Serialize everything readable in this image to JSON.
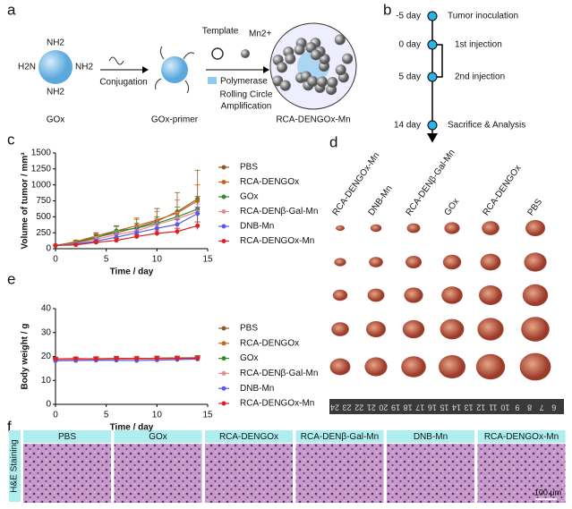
{
  "panel_a": {
    "letter": "a",
    "amine_top": "NH2",
    "amine_left": "H2N",
    "amine_right": "NH2",
    "amine_bottom": "NH2",
    "gox": "GOx",
    "step1": "Conjugation",
    "primer": "GOx-primer",
    "template": "Template",
    "ion": "Mn2+",
    "polymerase": "Polymerase",
    "rca_line1": "Rolling Circle",
    "rca_line2": "Amplification",
    "product": "RCA-DENGOx-Mn"
  },
  "panel_b": {
    "letter": "b",
    "events": [
      {
        "day": "-5 day",
        "label": "Tumor inoculation"
      },
      {
        "day": "0 day",
        "label": "1st injection"
      },
      {
        "day": "5 day",
        "label": "2nd injection"
      },
      {
        "day": "14 day",
        "label": "Sacrifice & Analysis"
      }
    ]
  },
  "panel_d": {
    "letter": "d",
    "groups": [
      "RCA-DENGOx-Mn",
      "DNB-Mn",
      "RCA-DENβ-Gal-Mn",
      "GOx",
      "RCA-DENGOx",
      "PBS"
    ],
    "ruler_labels": [
      "24",
      "23",
      "22",
      "21",
      "20",
      "19",
      "18",
      "17",
      "16",
      "15",
      "14",
      "13",
      "12",
      "11",
      "10",
      "9",
      "8",
      "7",
      "6"
    ]
  },
  "panel_f": {
    "letter": "f",
    "side_label": "H&E Staining",
    "groups": [
      "PBS",
      "GOx",
      "RCA-DENGOx",
      "RCA-DENβ-Gal-Mn",
      "DNB-Mn",
      "RCA-DENGOx-Mn"
    ],
    "scale": "100 μm"
  },
  "chart_data": [
    {
      "type": "line",
      "panel": "c",
      "x_label": "Time / day",
      "y_label": "Volume of tumor / mm³",
      "x": [
        0,
        2,
        4,
        6,
        8,
        10,
        12,
        14
      ],
      "xlim": [
        0,
        15
      ],
      "xticks": [
        0,
        5,
        10,
        15
      ],
      "ylim": [
        0,
        1500
      ],
      "yticks": [
        0,
        250,
        500,
        750,
        1000,
        1250,
        1500
      ],
      "series": [
        {
          "name": "PBS",
          "color": "#8b5a2b",
          "values": [
            50,
            100,
            180,
            250,
            330,
            430,
            580,
            780
          ],
          "errors": [
            5,
            30,
            60,
            100,
            150,
            200,
            300,
            450
          ]
        },
        {
          "name": "RCA-DENGOx",
          "color": "#c8651b",
          "values": [
            50,
            110,
            200,
            280,
            360,
            450,
            560,
            750
          ],
          "errors": [
            5,
            25,
            50,
            80,
            100,
            130,
            200,
            250
          ]
        },
        {
          "name": "GOx",
          "color": "#2e8b2e",
          "values": [
            50,
            90,
            170,
            280,
            320,
            400,
            500,
            620
          ],
          "errors": [
            5,
            20,
            50,
            70,
            80,
            100,
            150,
            200
          ]
        },
        {
          "name": "RCA-DENβ-Gal-Mn",
          "color": "#e88a8a",
          "values": [
            50,
            80,
            150,
            220,
            280,
            380,
            470,
            580
          ],
          "errors": [
            5,
            15,
            40,
            60,
            70,
            90,
            100,
            120
          ]
        },
        {
          "name": "DNB-Mn",
          "color": "#5a5ae6",
          "values": [
            50,
            70,
            120,
            180,
            250,
            320,
            380,
            550
          ],
          "errors": [
            5,
            15,
            30,
            50,
            60,
            70,
            80,
            100
          ]
        },
        {
          "name": "RCA-DENGOx-Mn",
          "color": "#e02020",
          "values": [
            50,
            60,
            100,
            130,
            190,
            240,
            270,
            360
          ],
          "errors": [
            5,
            10,
            20,
            30,
            30,
            40,
            50,
            60
          ]
        }
      ]
    },
    {
      "type": "line",
      "panel": "e",
      "x_label": "Time / day",
      "y_label": "Body weight / g",
      "x": [
        0,
        2,
        4,
        6,
        8,
        10,
        12,
        14
      ],
      "xlim": [
        0,
        15
      ],
      "xticks": [
        0,
        5,
        10,
        15
      ],
      "ylim": [
        0,
        40
      ],
      "yticks": [
        0,
        10,
        20,
        30,
        40
      ],
      "series": [
        {
          "name": "PBS",
          "color": "#8b5a2b",
          "values": [
            18.5,
            18.8,
            19,
            19.2,
            19,
            19.3,
            19.4,
            19.5
          ],
          "errors": [
            0.8,
            0.8,
            0.9,
            0.9,
            0.8,
            0.9,
            0.8,
            0.9
          ]
        },
        {
          "name": "RCA-DENGOx",
          "color": "#c8651b",
          "values": [
            18.8,
            18.9,
            19.1,
            19,
            19.2,
            19.1,
            19.3,
            19.4
          ],
          "errors": [
            0.8,
            0.7,
            0.8,
            0.8,
            0.9,
            0.8,
            0.8,
            0.8
          ]
        },
        {
          "name": "GOx",
          "color": "#2e8b2e",
          "values": [
            18.3,
            18.5,
            18.7,
            18.9,
            19,
            19.1,
            19.2,
            19.3
          ],
          "errors": [
            0.7,
            0.8,
            0.8,
            0.9,
            0.8,
            0.8,
            0.8,
            0.8
          ]
        },
        {
          "name": "RCA-DENβ-Gal-Mn",
          "color": "#e88a8a",
          "values": [
            18.6,
            18.7,
            18.8,
            18.9,
            19,
            19,
            19.1,
            19.2
          ],
          "errors": [
            0.7,
            0.7,
            0.7,
            0.8,
            0.8,
            0.8,
            0.7,
            0.8
          ]
        },
        {
          "name": "DNB-Mn",
          "color": "#5a5ae6",
          "values": [
            18.2,
            18.3,
            18.4,
            18.4,
            18.3,
            18.5,
            18.7,
            18.9
          ],
          "errors": [
            0.6,
            0.7,
            0.7,
            0.7,
            0.7,
            0.7,
            0.7,
            0.7
          ]
        },
        {
          "name": "RCA-DENGOx-Mn",
          "color": "#e02020",
          "values": [
            19,
            19.1,
            19,
            19.2,
            19.1,
            19.2,
            19.3,
            19.2
          ],
          "errors": [
            0.7,
            0.7,
            0.7,
            0.7,
            0.7,
            0.7,
            0.7,
            0.7
          ]
        }
      ]
    }
  ]
}
